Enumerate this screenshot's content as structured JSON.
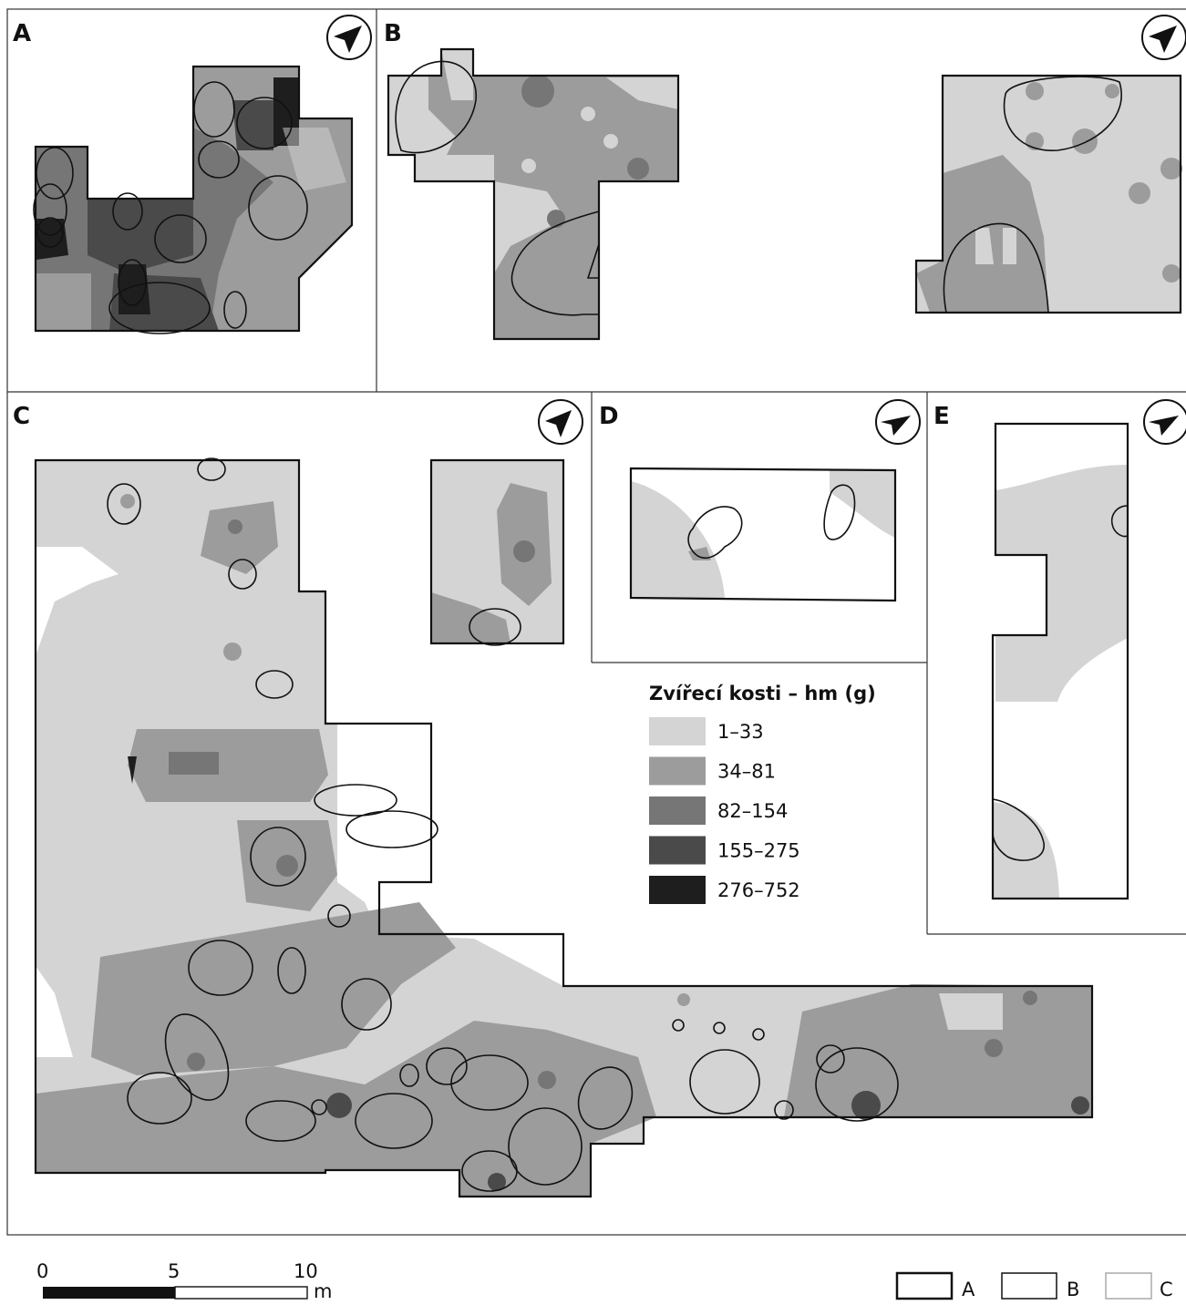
{
  "panels": [
    "A",
    "B",
    "C",
    "D",
    "E"
  ],
  "legend": {
    "title": "Zvířecí kosti – hm (g)",
    "classes": [
      {
        "label": "1–33",
        "color": "#d4d4d4"
      },
      {
        "label": "34–81",
        "color": "#9c9c9c"
      },
      {
        "label": "82–154",
        "color": "#767676"
      },
      {
        "label": "155–275",
        "color": "#4a4a4a"
      },
      {
        "label": "276–752",
        "color": "#1e1e1e"
      }
    ]
  },
  "scalebar": {
    "ticks": [
      "0",
      "5",
      "10"
    ],
    "unit": "m"
  },
  "outline_legend": [
    "A",
    "B",
    "C"
  ]
}
